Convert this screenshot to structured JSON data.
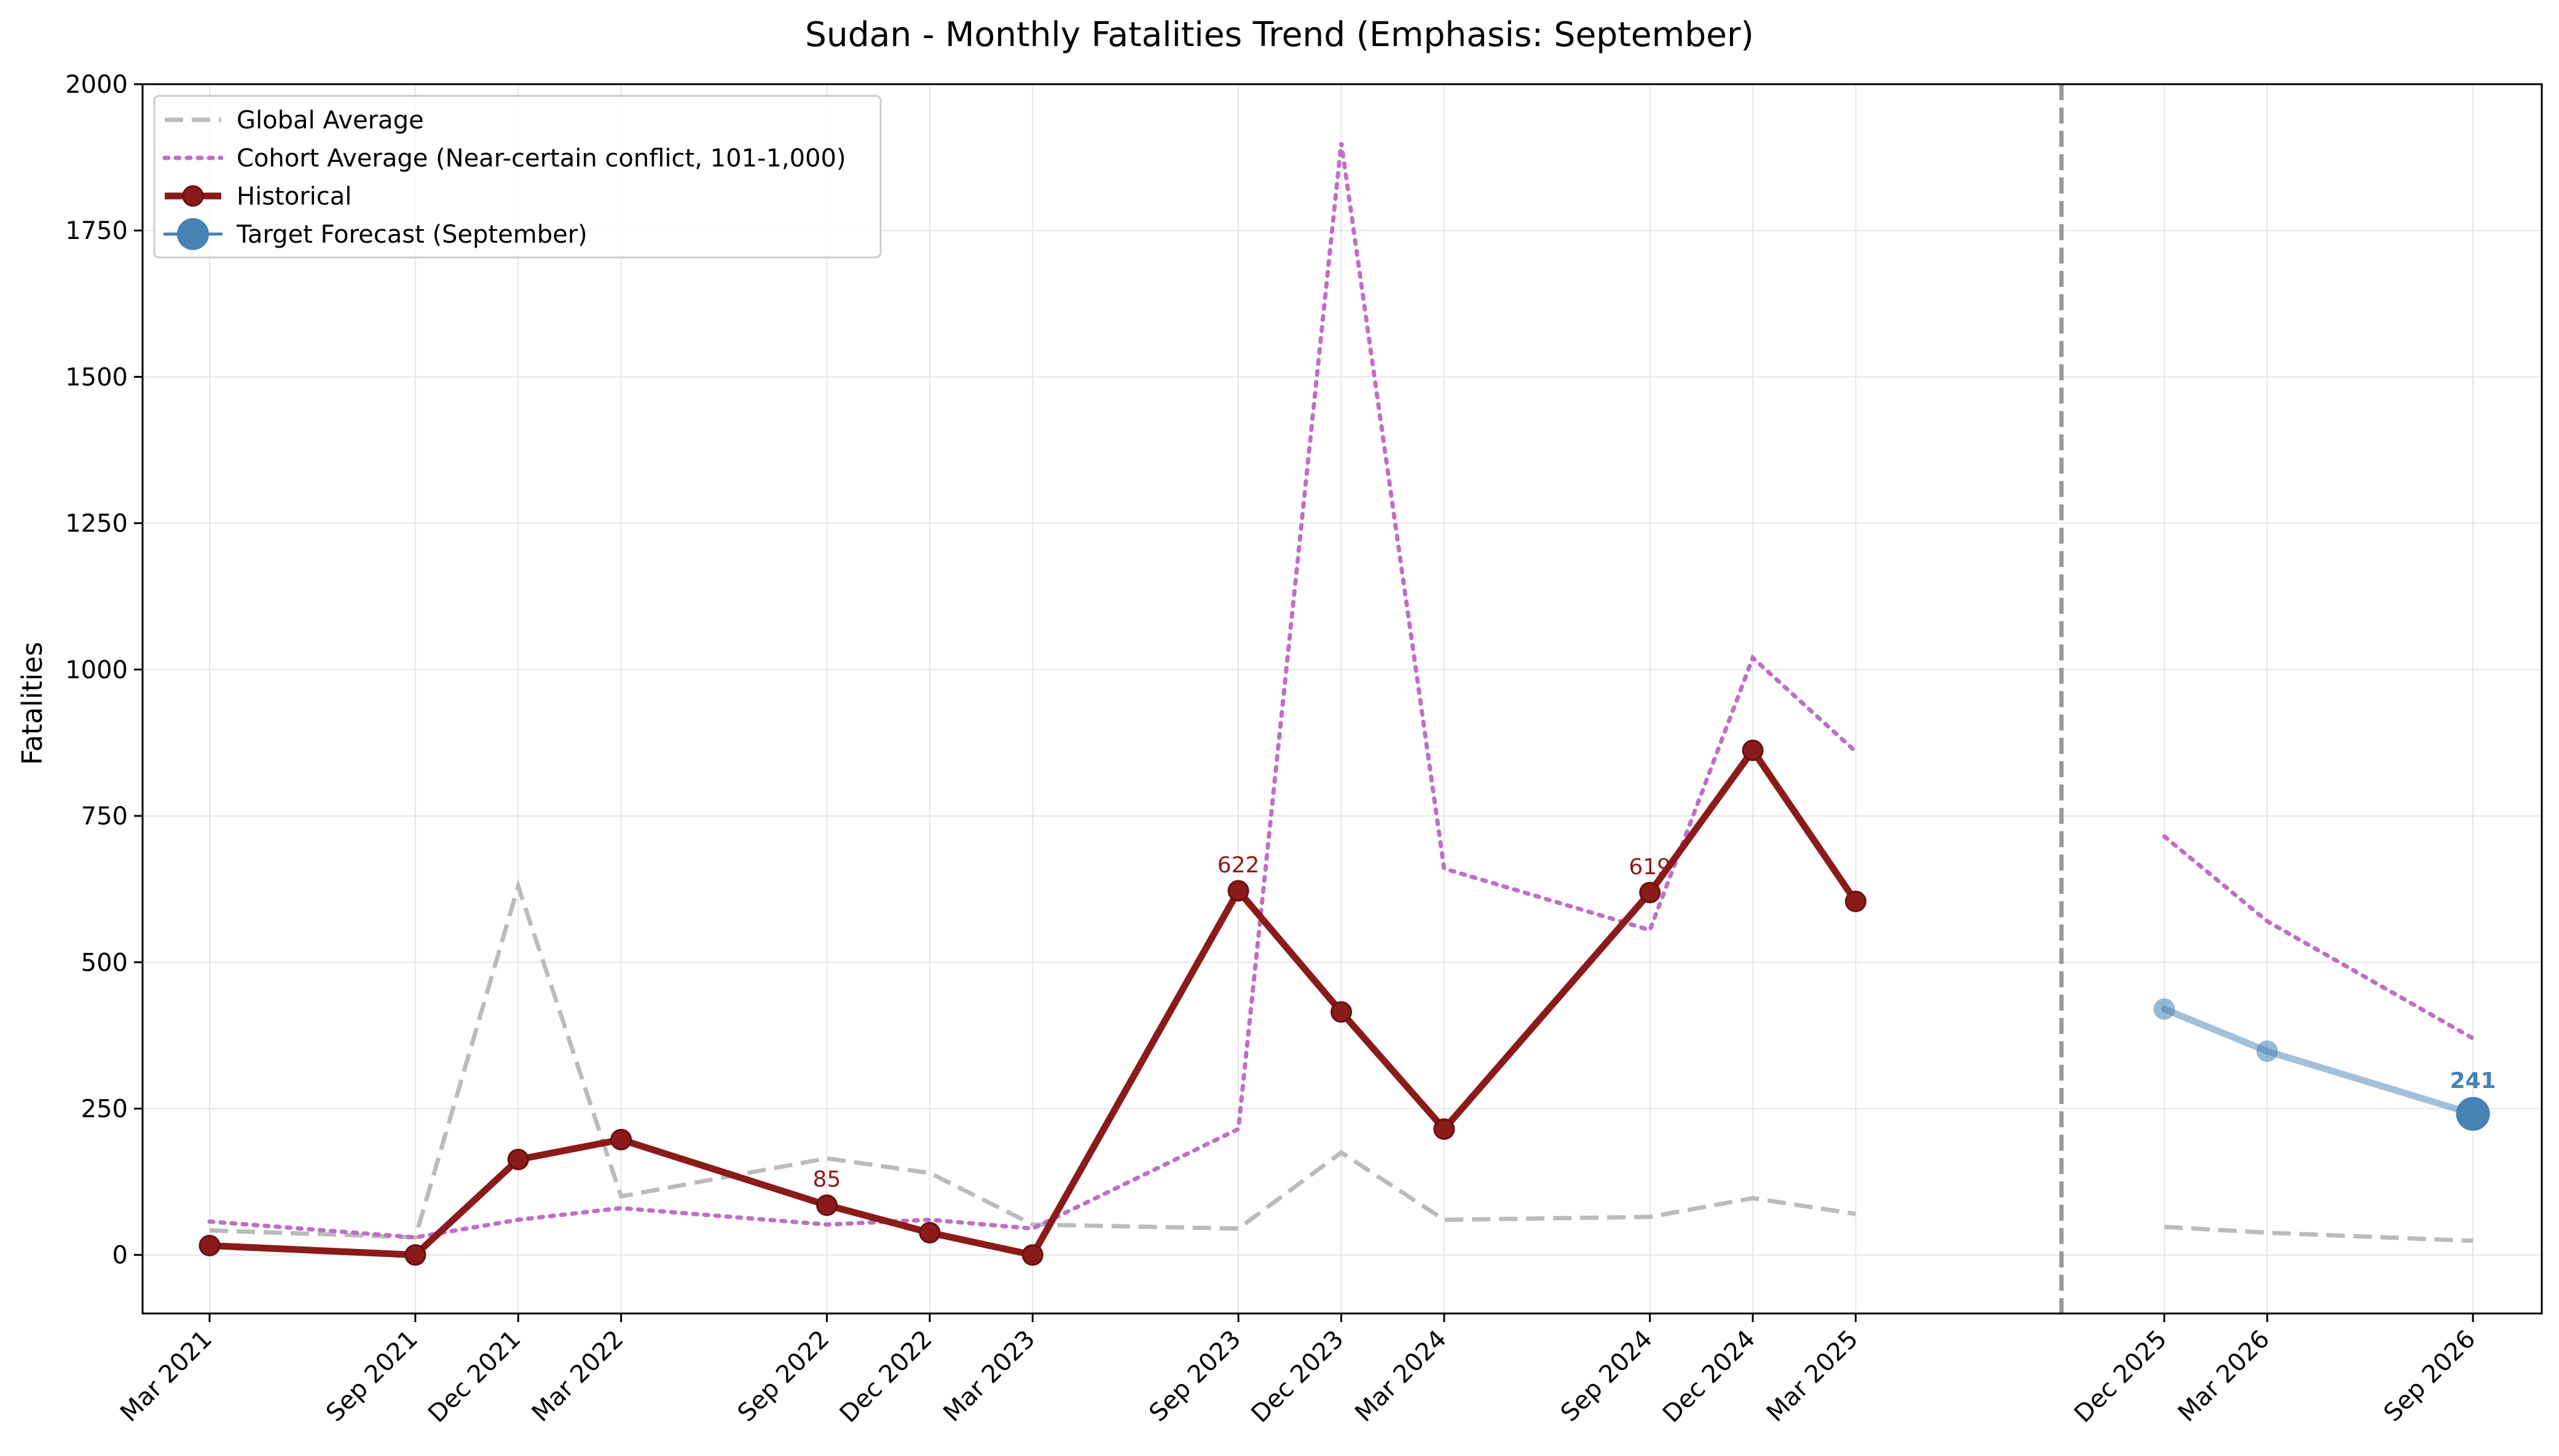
{
  "chart_data": {
    "type": "line",
    "title": "Sudan - Monthly Fatalities Trend (Emphasis: September)",
    "xlabel": "",
    "ylabel": "Fatalities",
    "ylim": [
      -100,
      2000
    ],
    "yticks": [
      0,
      250,
      500,
      750,
      1000,
      1250,
      1500,
      1750,
      2000
    ],
    "grid": true,
    "legend_position": "top-left",
    "forecast_divider_date": "Sep 2025",
    "categories": [
      "Mar 2021",
      "Sep 2021",
      "Dec 2021",
      "Mar 2022",
      "Sep 2022",
      "Dec 2022",
      "Mar 2023",
      "Sep 2023",
      "Dec 2023",
      "Mar 2024",
      "Sep 2024",
      "Dec 2024",
      "Mar 2025",
      "Dec 2025",
      "Mar 2026",
      "Sep 2026"
    ],
    "series": [
      {
        "name": "Global Average",
        "color": "#bbbbbb",
        "style": "dashed",
        "points": [
          [
            "Mar 2021",
            42
          ],
          [
            "Sep 2021",
            30
          ],
          [
            "Dec 2021",
            630
          ],
          [
            "Mar 2022",
            100
          ],
          [
            "Sep 2022",
            165
          ],
          [
            "Dec 2022",
            140
          ],
          [
            "Mar 2023",
            52
          ],
          [
            "Sep 2023",
            45
          ],
          [
            "Dec 2023",
            175
          ],
          [
            "Mar 2024",
            60
          ],
          [
            "Sep 2024",
            65
          ],
          [
            "Dec 2024",
            97
          ],
          [
            "Mar 2025",
            70
          ],
          [
            null,
            null
          ],
          [
            "Dec 2025",
            48
          ],
          [
            "Mar 2026",
            38
          ],
          [
            "Sep 2026",
            24
          ]
        ]
      },
      {
        "name": "Cohort Average (Near-certain conflict, 101-1,000)",
        "color": "#c06ec6",
        "style": "dotted",
        "points": [
          [
            "Mar 2021",
            57
          ],
          [
            "Sep 2021",
            30
          ],
          [
            "Dec 2021",
            60
          ],
          [
            "Mar 2022",
            80
          ],
          [
            "Sep 2022",
            52
          ],
          [
            "Dec 2022",
            60
          ],
          [
            "Mar 2023",
            45
          ],
          [
            "Sep 2023",
            215
          ],
          [
            "Dec 2023",
            1900
          ],
          [
            "Mar 2024",
            660
          ],
          [
            "Sep 2024",
            555
          ],
          [
            "Dec 2024",
            1020
          ],
          [
            "Mar 2025",
            860
          ],
          [
            null,
            null
          ],
          [
            "Dec 2025",
            715
          ],
          [
            "Mar 2026",
            570
          ],
          [
            "Sep 2026",
            370
          ]
        ]
      },
      {
        "name": "Historical",
        "color": "#8b1a1a",
        "style": "solid-markers",
        "points": [
          [
            "Mar 2021",
            16
          ],
          [
            "Sep 2021",
            0
          ],
          [
            "Dec 2021",
            163
          ],
          [
            "Mar 2022",
            197
          ],
          [
            "Sep 2022",
            85
          ],
          [
            "Dec 2022",
            38
          ],
          [
            "Mar 2023",
            0
          ],
          [
            "Sep 2023",
            622
          ],
          [
            "Dec 2023",
            415
          ],
          [
            "Mar 2024",
            215
          ],
          [
            "Sep 2024",
            619
          ],
          [
            "Dec 2024",
            862
          ],
          [
            "Mar 2025",
            604
          ]
        ],
        "labeled_points": [
          {
            "x": "Sep 2022",
            "label": "85"
          },
          {
            "x": "Sep 2023",
            "label": "622"
          },
          {
            "x": "Sep 2024",
            "label": "619"
          }
        ]
      },
      {
        "name": "Target Forecast (September)",
        "color": "#4682b4",
        "style": "forecast",
        "points": [
          [
            "Dec 2025",
            420
          ],
          [
            "Mar 2026",
            348
          ],
          [
            "Sep 2026",
            241
          ]
        ],
        "labeled_points": [
          {
            "x": "Sep 2026",
            "label": "241"
          }
        ]
      }
    ]
  }
}
